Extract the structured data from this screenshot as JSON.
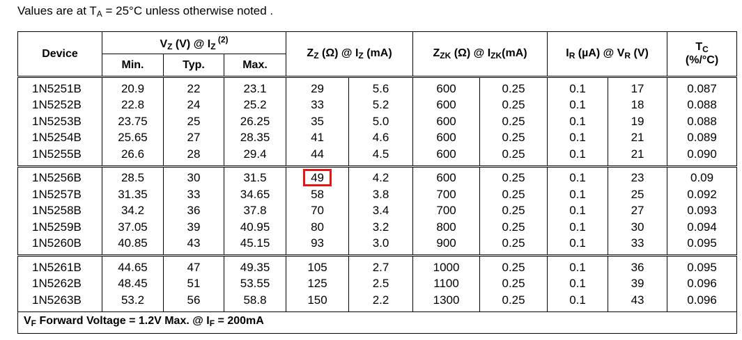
{
  "note": [
    "Values are at T",
    "A",
    " = 25°C unless otherwise noted ."
  ],
  "table": {
    "header": {
      "device": "Device",
      "vz": [
        "V",
        "Z",
        " (V) @ I",
        "Z",
        " (2)"
      ],
      "vz_sub": [
        "Min.",
        "Typ.",
        "Max."
      ],
      "zz": [
        "Z",
        "Z",
        " (Ω) @ I",
        "Z",
        " (mA)"
      ],
      "zzk": [
        "Z",
        "ZK",
        " (Ω) @ I",
        "ZK",
        "(mA)"
      ],
      "ir": [
        "I",
        "R",
        " (µA) @ V",
        "R",
        " (V)"
      ],
      "tc": [
        "T",
        "C",
        "(%/°C)"
      ]
    },
    "groups": [
      [
        [
          "1N5251B",
          "20.9",
          "22",
          "23.1",
          "29",
          "5.6",
          "600",
          "0.25",
          "0.1",
          "17",
          "0.087"
        ],
        [
          "1N5252B",
          "22.8",
          "24",
          "25.2",
          "33",
          "5.2",
          "600",
          "0.25",
          "0.1",
          "18",
          "0.088"
        ],
        [
          "1N5253B",
          "23.75",
          "25",
          "26.25",
          "35",
          "5.0",
          "600",
          "0.25",
          "0.1",
          "19",
          "0.088"
        ],
        [
          "1N5254B",
          "25.65",
          "27",
          "28.35",
          "41",
          "4.6",
          "600",
          "0.25",
          "0.1",
          "21",
          "0.089"
        ],
        [
          "1N5255B",
          "26.6",
          "28",
          "29.4",
          "44",
          "4.5",
          "600",
          "0.25",
          "0.1",
          "21",
          "0.090"
        ]
      ],
      [
        [
          "1N5256B",
          "28.5",
          "30",
          "31.5",
          "49",
          "4.2",
          "600",
          "0.25",
          "0.1",
          "23",
          "0.09"
        ],
        [
          "1N5257B",
          "31.35",
          "33",
          "34.65",
          "58",
          "3.8",
          "700",
          "0.25",
          "0.1",
          "25",
          "0.092"
        ],
        [
          "1N5258B",
          "34.2",
          "36",
          "37.8",
          "70",
          "3.4",
          "700",
          "0.25",
          "0.1",
          "27",
          "0.093"
        ],
        [
          "1N5259B",
          "37.05",
          "39",
          "40.95",
          "80",
          "3.2",
          "800",
          "0.25",
          "0.1",
          "30",
          "0.094"
        ],
        [
          "1N5260B",
          "40.85",
          "43",
          "45.15",
          "93",
          "3.0",
          "900",
          "0.25",
          "0.1",
          "33",
          "0.095"
        ]
      ],
      [
        [
          "1N5261B",
          "44.65",
          "47",
          "49.35",
          "105",
          "2.7",
          "1000",
          "0.25",
          "0.1",
          "36",
          "0.095"
        ],
        [
          "1N5262B",
          "48.45",
          "51",
          "53.55",
          "125",
          "2.5",
          "1100",
          "0.25",
          "0.1",
          "39",
          "0.096"
        ],
        [
          "1N5263B",
          "53.2",
          "56",
          "58.8",
          "150",
          "2.2",
          "1300",
          "0.25",
          "0.1",
          "43",
          "0.096"
        ]
      ]
    ],
    "footer": [
      "V",
      "F",
      " Forward Voltage = 1.2V Max. @ I",
      "F",
      " = 200mA"
    ]
  }
}
